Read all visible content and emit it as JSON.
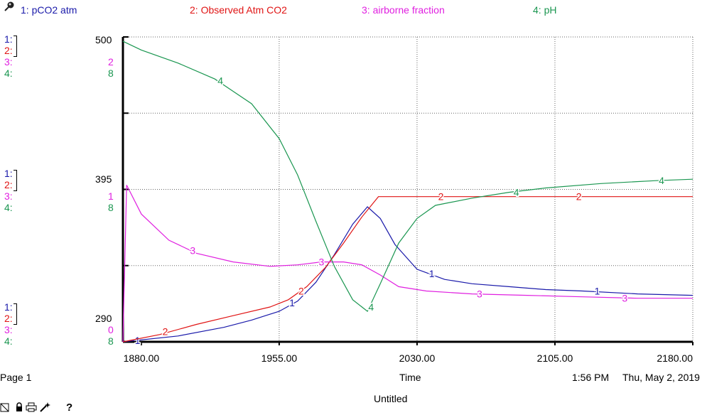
{
  "legend": [
    {
      "label": "1: pCO2 atm",
      "color": "#1a1aaa"
    },
    {
      "label": "2: Observed Atm CO2",
      "color": "#e01414"
    },
    {
      "label": "3: airborne fraction",
      "color": "#e020e0"
    },
    {
      "label": "4: pH",
      "color": "#1a9650"
    }
  ],
  "scale_groups": [
    {
      "series_labels": [
        "1:",
        "2:",
        "3:",
        "4:"
      ],
      "values": [
        "2",
        "8"
      ],
      "pco2": "500"
    },
    {
      "series_labels": [
        "1:",
        "2:",
        "3:",
        "4:"
      ],
      "values": [
        "1",
        "8"
      ],
      "pco2": "395"
    },
    {
      "series_labels": [
        "1:",
        "2:",
        "3:",
        "4:"
      ],
      "values": [
        "0",
        "8"
      ],
      "pco2": "290"
    }
  ],
  "footer": {
    "page": "Page 1",
    "x_axis_title": "Time",
    "time": "1:56 PM",
    "date": "Thu, May 2, 2019",
    "document_title": "Untitled",
    "help_label": "?"
  },
  "chart_data": {
    "type": "line",
    "xlabel": "Time",
    "xlim": [
      1870,
      2180
    ],
    "x_ticks": [
      "1880.00",
      "1955.00",
      "2030.00",
      "2105.00",
      "2180.00"
    ],
    "x_tick_values": [
      1880,
      1955,
      2030,
      2105,
      2180
    ],
    "ylim": [
      290,
      500
    ],
    "grid": true,
    "series": [
      {
        "name": "pCO2 atm",
        "marker": "1",
        "color": "#1a1aaa",
        "points": [
          [
            1870,
            290
          ],
          [
            1900,
            294
          ],
          [
            1925,
            300
          ],
          [
            1940,
            305
          ],
          [
            1955,
            311
          ],
          [
            1965,
            318
          ],
          [
            1975,
            331
          ],
          [
            1985,
            350
          ],
          [
            1995,
            371
          ],
          [
            2003,
            383
          ],
          [
            2010,
            375
          ],
          [
            2018,
            357
          ],
          [
            2030,
            340
          ],
          [
            2045,
            333
          ],
          [
            2060,
            330
          ],
          [
            2080,
            328
          ],
          [
            2100,
            326
          ],
          [
            2120,
            325
          ],
          [
            2150,
            323
          ],
          [
            2180,
            322
          ]
        ],
        "marker_points": [
          [
            1878,
            291
          ],
          [
            1962,
            317
          ],
          [
            2038,
            337
          ],
          [
            2128,
            325
          ]
        ]
      },
      {
        "name": "Observed Atm CO2",
        "marker": "2",
        "color": "#e01414",
        "points": [
          [
            1870,
            290
          ],
          [
            1890,
            295
          ],
          [
            1910,
            302
          ],
          [
            1930,
            308
          ],
          [
            1950,
            314
          ],
          [
            1960,
            319
          ],
          [
            1970,
            328
          ],
          [
            1980,
            341
          ],
          [
            1990,
            358
          ],
          [
            2000,
            376
          ],
          [
            2009,
            390
          ],
          [
            2030,
            390
          ],
          [
            2060,
            390
          ],
          [
            2100,
            390
          ],
          [
            2140,
            390
          ],
          [
            2180,
            390
          ]
        ],
        "marker_points": [
          [
            1893,
            297
          ],
          [
            1967,
            325
          ],
          [
            2043,
            390
          ],
          [
            2118,
            390
          ]
        ]
      },
      {
        "name": "airborne fraction",
        "marker": "3",
        "color": "#e020e0",
        "points": [
          [
            1870,
            290
          ],
          [
            1872,
            398
          ],
          [
            1880,
            378
          ],
          [
            1895,
            360
          ],
          [
            1910,
            351
          ],
          [
            1930,
            345
          ],
          [
            1950,
            342
          ],
          [
            1965,
            343
          ],
          [
            1978,
            345
          ],
          [
            1990,
            345
          ],
          [
            2000,
            343
          ],
          [
            2010,
            336
          ],
          [
            2020,
            328
          ],
          [
            2035,
            325
          ],
          [
            2060,
            323
          ],
          [
            2090,
            322
          ],
          [
            2120,
            321
          ],
          [
            2150,
            320
          ],
          [
            2180,
            320
          ]
        ],
        "marker_points": [
          [
            1908,
            353
          ],
          [
            1978,
            345
          ],
          [
            2064,
            323
          ],
          [
            2143,
            320
          ]
        ]
      },
      {
        "name": "pH",
        "marker": "4",
        "color": "#1a9650",
        "points": [
          [
            1870,
            497
          ],
          [
            1880,
            491
          ],
          [
            1900,
            482
          ],
          [
            1920,
            471
          ],
          [
            1940,
            454
          ],
          [
            1955,
            430
          ],
          [
            1965,
            405
          ],
          [
            1975,
            373
          ],
          [
            1985,
            342
          ],
          [
            1995,
            319
          ],
          [
            2003,
            311
          ],
          [
            2010,
            330
          ],
          [
            2020,
            358
          ],
          [
            2030,
            375
          ],
          [
            2040,
            384
          ],
          [
            2060,
            389
          ],
          [
            2080,
            393
          ],
          [
            2100,
            396
          ],
          [
            2130,
            399
          ],
          [
            2160,
            401
          ],
          [
            2180,
            402
          ]
        ],
        "marker_points": [
          [
            1923,
            470
          ],
          [
            2005,
            314
          ],
          [
            2084,
            393
          ],
          [
            2163,
            401
          ]
        ]
      }
    ]
  }
}
